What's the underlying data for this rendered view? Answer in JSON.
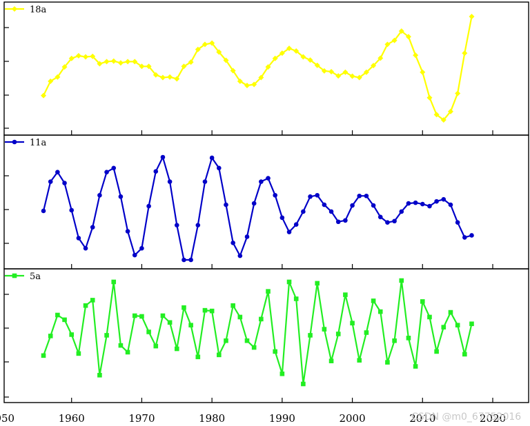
{
  "chart_data": [
    {
      "type": "line",
      "series": [
        {
          "name": "18a",
          "color": "#ffff00",
          "marker": "diamond",
          "x": [
            1956,
            1957,
            1958,
            1959,
            1960,
            1961,
            1962,
            1963,
            1964,
            1965,
            1966,
            1967,
            1968,
            1969,
            1970,
            1971,
            1972,
            1973,
            1974,
            1975,
            1976,
            1977,
            1978,
            1979,
            1980,
            1981,
            1982,
            1983,
            1984,
            1985,
            1986,
            1987,
            1988,
            1989,
            1990,
            1991,
            1992,
            1993,
            1994,
            1995,
            1996,
            1997,
            1998,
            1999,
            2000,
            2001,
            2002,
            2003,
            2004,
            2005,
            2006,
            2007,
            2008,
            2009,
            2010,
            2011,
            2012,
            2013,
            2014,
            2015,
            2016,
            2017
          ],
          "values": [
            -0.48,
            0.06,
            0.22,
            0.6,
            0.92,
            1.02,
            0.98,
            1.0,
            0.72,
            0.8,
            0.82,
            0.75,
            0.8,
            0.8,
            0.62,
            0.62,
            0.3,
            0.2,
            0.22,
            0.15,
            0.62,
            0.78,
            1.26,
            1.45,
            1.5,
            1.16,
            0.85,
            0.46,
            0.06,
            -0.1,
            -0.06,
            0.2,
            0.6,
            0.92,
            1.12,
            1.3,
            1.2,
            0.98,
            0.86,
            0.66,
            0.45,
            0.42,
            0.26,
            0.4,
            0.25,
            0.2,
            0.4,
            0.65,
            0.93,
            1.45,
            1.6,
            1.95,
            1.74,
            1.04,
            0.4,
            -0.56,
            -1.2,
            -1.4,
            -1.08,
            -0.4,
            1.12,
            2.5
          ]
        }
      ]
    },
    {
      "type": "line",
      "series": [
        {
          "name": "11a",
          "color": "#0000c8",
          "marker": "circle",
          "x": [
            1956,
            1957,
            1958,
            1959,
            1960,
            1961,
            1962,
            1963,
            1964,
            1965,
            1966,
            1967,
            1968,
            1969,
            1970,
            1971,
            1972,
            1973,
            1974,
            1975,
            1976,
            1977,
            1978,
            1979,
            1980,
            1981,
            1982,
            1983,
            1984,
            1985,
            1986,
            1987,
            1988,
            1989,
            1990,
            1991,
            1992,
            1993,
            1994,
            1995,
            1996,
            1997,
            1998,
            1999,
            2000,
            2001,
            2002,
            2003,
            2004,
            2005,
            2006,
            2007,
            2008,
            2009,
            2010,
            2011,
            2012,
            2013,
            2014,
            2015,
            2016,
            2017
          ],
          "values": [
            -0.06,
            0.8,
            1.08,
            0.76,
            -0.04,
            -0.86,
            -1.16,
            -0.54,
            0.4,
            1.08,
            1.2,
            0.36,
            -0.66,
            -1.36,
            -1.16,
            0.08,
            1.1,
            1.52,
            0.8,
            -0.48,
            -1.5,
            -1.5,
            -0.48,
            0.8,
            1.5,
            1.2,
            0.12,
            -1.0,
            -1.38,
            -0.82,
            0.16,
            0.8,
            0.9,
            0.4,
            -0.26,
            -0.68,
            -0.46,
            -0.08,
            0.36,
            0.4,
            0.12,
            -0.08,
            -0.38,
            -0.34,
            0.1,
            0.38,
            0.38,
            0.1,
            -0.24,
            -0.4,
            -0.36,
            -0.08,
            0.16,
            0.18,
            0.14,
            0.08,
            0.22,
            0.28,
            0.12,
            -0.4,
            -0.84,
            -0.78
          ]
        }
      ]
    },
    {
      "type": "line",
      "series": [
        {
          "name": "5a",
          "color": "#22ee22",
          "marker": "square",
          "x": [
            1956,
            1957,
            1958,
            1959,
            1960,
            1961,
            1962,
            1963,
            1964,
            1965,
            1966,
            1967,
            1968,
            1969,
            1970,
            1971,
            1972,
            1973,
            1974,
            1975,
            1976,
            1977,
            1978,
            1979,
            1980,
            1981,
            1982,
            1983,
            1984,
            1985,
            1986,
            1987,
            1988,
            1989,
            1990,
            1991,
            1992,
            1993,
            1994,
            1995,
            1996,
            1997,
            1998,
            1999,
            2000,
            2001,
            2002,
            2003,
            2004,
            2005,
            2006,
            2007,
            2008,
            2009,
            2010,
            2011,
            2012,
            2013,
            2014,
            2015,
            2016,
            2017
          ],
          "values": [
            -0.82,
            -0.24,
            0.38,
            0.24,
            -0.2,
            -0.76,
            0.66,
            0.82,
            -1.4,
            -0.22,
            1.36,
            -0.52,
            -0.72,
            0.36,
            0.34,
            -0.12,
            -0.54,
            0.36,
            0.16,
            -0.62,
            0.6,
            0.08,
            -0.86,
            0.52,
            0.5,
            -0.8,
            -0.38,
            0.66,
            0.32,
            -0.38,
            -0.58,
            0.26,
            1.08,
            -0.7,
            -1.36,
            1.36,
            0.86,
            -1.66,
            -0.22,
            1.32,
            -0.04,
            -0.98,
            -0.18,
            0.98,
            0.14,
            -0.96,
            -0.14,
            0.8,
            0.48,
            -1.02,
            -0.38,
            1.4,
            -0.3,
            -1.14,
            0.78,
            0.32,
            -0.7,
            0.02,
            0.46,
            0.08,
            -0.78,
            0.12
          ]
        }
      ]
    }
  ],
  "x_axis": {
    "range": [
      1950,
      2025
    ],
    "tick_labels": [
      "1950",
      "1960",
      "1970",
      "1980",
      "1990",
      "2000",
      "2010",
      "2020"
    ]
  },
  "watermark": "CSDN @m0_67752016"
}
